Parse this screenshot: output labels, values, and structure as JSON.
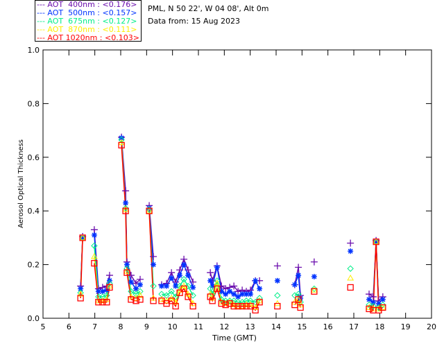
{
  "header": {
    "site": "PML, N 50 22', W 04 08', Alt 0m",
    "date": "Data from: 15 Aug 2023"
  },
  "chart_data": {
    "type": "scatter",
    "xlabel": "Time (GMT)",
    "ylabel": "Aerosol Optical Thickness",
    "xlim": [
      5,
      20
    ],
    "ylim": [
      0,
      1.0
    ],
    "xticks": [
      "5",
      "6",
      "7",
      "8",
      "9",
      "10",
      "11",
      "12",
      "13",
      "14",
      "15",
      "16",
      "17",
      "18",
      "19",
      "20"
    ],
    "yticks": [
      "0.0",
      "0.2",
      "0.4",
      "0.6",
      "0.8",
      "1.0"
    ],
    "legend_position": "top-left",
    "series": [
      {
        "name": "400nm",
        "label": "AOT  400nm : <0.176>",
        "color": "#6a0dad",
        "marker": "plus"
      },
      {
        "name": "500nm",
        "label": "AOT  500nm : <0.157>",
        "color": "#0033ff",
        "marker": "asterisk"
      },
      {
        "name": "675nm",
        "label": "AOT  675nm : <0.127>",
        "color": "#00ee88",
        "marker": "diamond"
      },
      {
        "name": "870nm",
        "label": "AOT  870nm : <0.111>",
        "color": "#ffee00",
        "marker": "triangle"
      },
      {
        "name": "1020nm",
        "label": "AOT 1020nm : <0.103>",
        "color": "#ff0000",
        "marker": "square"
      }
    ],
    "x": [
      6.45,
      6.53,
      6.98,
      7.14,
      7.3,
      7.46,
      7.57,
      8.03,
      8.19,
      8.24,
      8.4,
      8.59,
      8.75,
      9.1,
      9.26,
      9.58,
      9.77,
      9.96,
      10.12,
      10.28,
      10.44,
      10.6,
      10.79,
      11.46,
      11.54,
      11.72,
      11.89,
      12.05,
      12.21,
      12.37,
      12.53,
      12.69,
      12.85,
      13.01,
      13.2,
      13.36,
      14.05,
      14.72,
      14.86,
      14.94,
      15.47,
      16.87,
      17.59,
      17.75,
      17.86,
      17.96,
      18.12
    ],
    "values": [
      [
        0.12,
        0.305,
        0.33,
        0.11,
        0.115,
        0.12,
        0.16,
        0.675,
        0.475,
        0.21,
        0.16,
        0.13,
        0.145,
        0.42,
        0.23,
        0.125,
        0.13,
        0.17,
        0.135,
        0.18,
        0.22,
        0.18,
        0.135,
        0.17,
        0.14,
        0.195,
        0.12,
        0.11,
        0.115,
        0.12,
        0.1,
        0.105,
        0.1,
        0.105,
        0.14,
        0.14,
        0.195,
        0.125,
        0.19,
        0.085,
        0.21,
        0.28,
        0.09,
        0.08,
        0.29,
        0.065,
        0.08
      ],
      [
        0.11,
        0.3,
        0.31,
        0.1,
        0.1,
        0.105,
        0.14,
        0.672,
        0.43,
        0.2,
        0.135,
        0.11,
        0.125,
        0.41,
        0.2,
        0.12,
        0.12,
        0.15,
        0.12,
        0.16,
        0.2,
        0.16,
        0.115,
        0.14,
        0.12,
        0.19,
        0.1,
        0.09,
        0.1,
        0.09,
        0.08,
        0.09,
        0.09,
        0.09,
        0.14,
        0.11,
        0.14,
        0.125,
        0.16,
        0.075,
        0.155,
        0.25,
        0.07,
        0.06,
        0.285,
        0.055,
        0.07
      ],
      [
        0.095,
        0.3,
        0.27,
        0.08,
        0.08,
        0.085,
        0.13,
        0.665,
        0.41,
        0.185,
        0.1,
        0.09,
        0.1,
        0.405,
        0.12,
        0.09,
        0.085,
        0.1,
        0.08,
        0.12,
        0.145,
        0.12,
        0.085,
        0.11,
        0.09,
        0.14,
        0.07,
        0.065,
        0.065,
        0.065,
        0.06,
        0.06,
        0.065,
        0.065,
        0.06,
        0.075,
        0.085,
        0.085,
        0.09,
        0.06,
        0.11,
        0.185,
        0.05,
        0.045,
        0.285,
        0.04,
        0.05
      ],
      [
        0.09,
        0.3,
        0.23,
        0.065,
        0.065,
        0.07,
        0.12,
        0.655,
        0.405,
        0.175,
        0.08,
        0.075,
        0.085,
        0.4,
        0.075,
        0.07,
        0.065,
        0.075,
        0.06,
        0.105,
        0.12,
        0.09,
        0.055,
        0.09,
        0.075,
        0.13,
        0.06,
        0.055,
        0.06,
        0.05,
        0.045,
        0.045,
        0.05,
        0.05,
        0.04,
        0.065,
        0.055,
        0.06,
        0.07,
        0.05,
        0.105,
        0.15,
        0.04,
        0.035,
        0.285,
        0.035,
        0.04
      ],
      [
        0.075,
        0.3,
        0.205,
        0.06,
        0.06,
        0.06,
        0.115,
        0.645,
        0.4,
        0.17,
        0.07,
        0.065,
        0.07,
        0.4,
        0.065,
        0.065,
        0.055,
        0.065,
        0.045,
        0.095,
        0.11,
        0.08,
        0.045,
        0.08,
        0.065,
        0.11,
        0.055,
        0.05,
        0.055,
        0.045,
        0.045,
        0.045,
        0.045,
        0.045,
        0.03,
        0.06,
        0.045,
        0.05,
        0.07,
        0.04,
        0.1,
        0.115,
        0.035,
        0.03,
        0.285,
        0.03,
        0.04
      ]
    ]
  }
}
